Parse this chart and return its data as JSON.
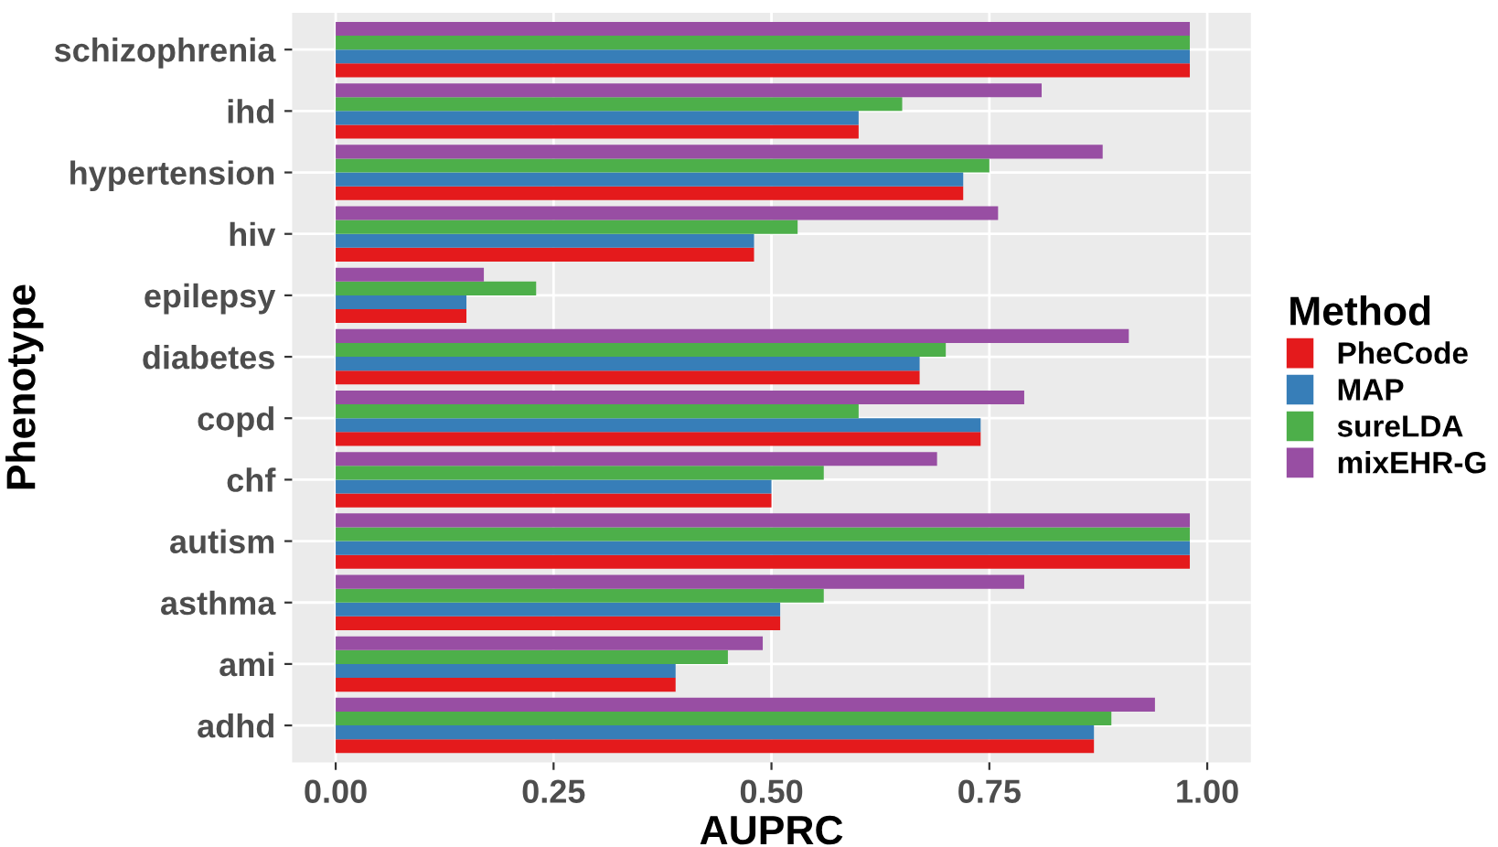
{
  "chart_data": {
    "type": "bar",
    "orientation": "horizontal",
    "xlabel": "AUPRC",
    "ylabel": "Phenotype",
    "legend_title": "Method",
    "legend": "right",
    "grid": true,
    "categories": [
      "schizophrenia",
      "ihd",
      "hypertension",
      "hiv",
      "epilepsy",
      "diabetes",
      "copd",
      "chf",
      "autism",
      "asthma",
      "ami",
      "adhd"
    ],
    "xlim": [
      -0.05,
      1.05
    ],
    "xticks": [
      {
        "value": 0,
        "label": "0.00"
      },
      {
        "value": 0.25,
        "label": "0.25"
      },
      {
        "value": 0.5,
        "label": "0.50"
      },
      {
        "value": 0.75,
        "label": "0.75"
      },
      {
        "value": 1,
        "label": "1.00"
      }
    ],
    "series": [
      {
        "name": "PheCode",
        "color": "#e41a1c",
        "values": [
          0.98,
          0.6,
          0.72,
          0.48,
          0.15,
          0.67,
          0.74,
          0.5,
          0.98,
          0.51,
          0.39,
          0.87
        ]
      },
      {
        "name": "MAP",
        "color": "#377eb8",
        "values": [
          0.98,
          0.6,
          0.72,
          0.48,
          0.15,
          0.67,
          0.74,
          0.5,
          0.98,
          0.51,
          0.39,
          0.87
        ]
      },
      {
        "name": "sureLDA",
        "color": "#4daf4a",
        "values": [
          0.98,
          0.65,
          0.75,
          0.53,
          0.23,
          0.7,
          0.6,
          0.56,
          0.98,
          0.56,
          0.45,
          0.89
        ]
      },
      {
        "name": "mixEHR-G",
        "color": "#984ea3",
        "values": [
          0.98,
          0.81,
          0.88,
          0.76,
          0.17,
          0.91,
          0.79,
          0.69,
          0.98,
          0.79,
          0.49,
          0.94
        ]
      }
    ]
  }
}
